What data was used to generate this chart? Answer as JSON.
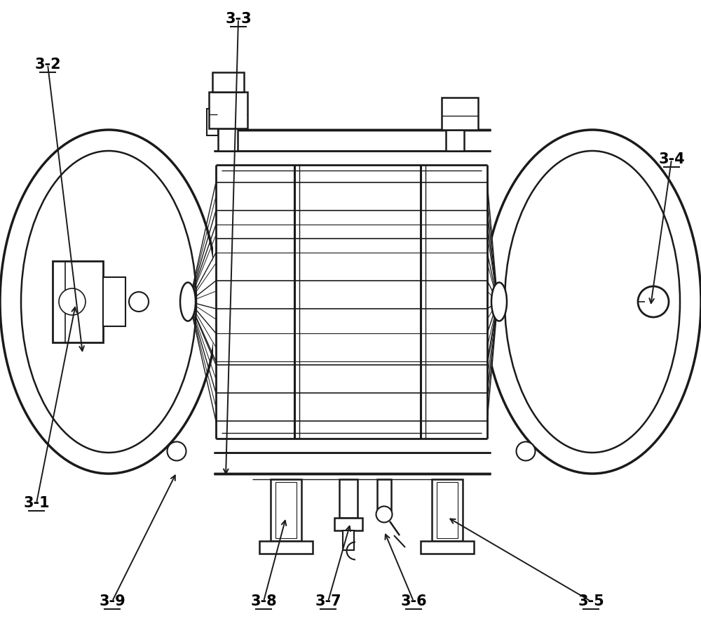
{
  "bg_color": "#ffffff",
  "line_color": "#1a1a1a",
  "label_color": "#000000",
  "label_fontsize": 15,
  "label_fontweight": "bold",
  "labels_info": [
    [
      "3-1",
      52,
      168,
      108,
      452
    ],
    [
      "3-2",
      68,
      793,
      118,
      380
    ],
    [
      "3-3",
      340,
      858,
      322,
      205
    ],
    [
      "3-4",
      958,
      658,
      928,
      448
    ],
    [
      "3-5",
      843,
      28,
      638,
      148
    ],
    [
      "3-6",
      590,
      28,
      548,
      128
    ],
    [
      "3-7",
      468,
      28,
      500,
      140
    ],
    [
      "3-8",
      376,
      28,
      408,
      148
    ],
    [
      "3-9",
      160,
      28,
      252,
      212
    ]
  ]
}
